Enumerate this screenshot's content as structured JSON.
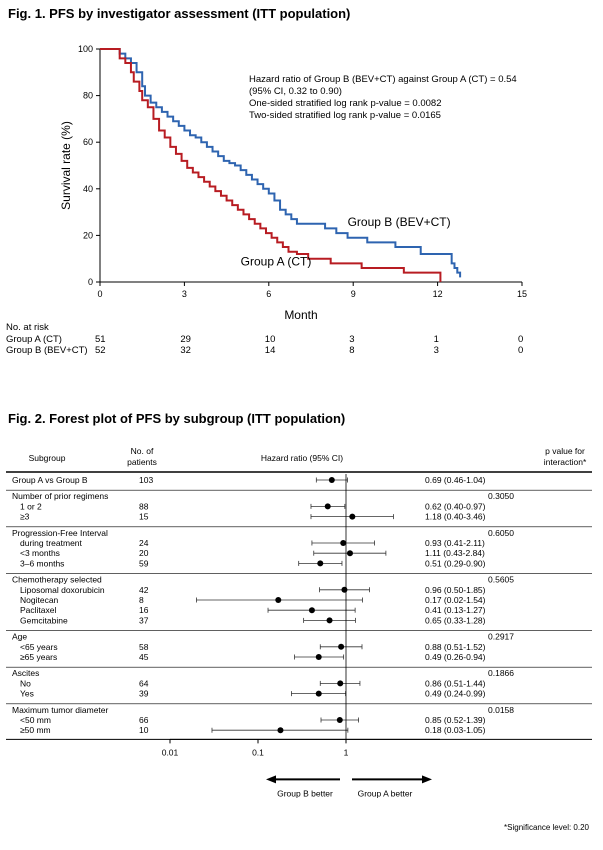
{
  "figure1": {
    "title": "Fig. 1. PFS by investigator assessment (ITT population)",
    "chart_data": {
      "type": "line",
      "title": "Fig. 1. PFS by investigator assessment (ITT population)",
      "xlabel": "Month",
      "ylabel": "Survival rate   (%)",
      "xlim": [
        0,
        15
      ],
      "ylim": [
        0,
        100
      ],
      "xticks": [
        0,
        3,
        6,
        9,
        12,
        15
      ],
      "yticks": [
        0,
        20,
        40,
        60,
        80,
        100
      ],
      "grid": false,
      "annotations": [
        "Hazard ratio of Group B (BEV+CT) against Group A (CT) = 0.54",
        "(95% CI, 0.32 to 0.90)",
        "One-sided stratified log rank p-value = 0.0082",
        "Two-sided stratified log rank p-value = 0.0165"
      ],
      "series": [
        {
          "name": "Group B (BEV+CT)",
          "color": "#2e64b0",
          "x": [
            0,
            0.5,
            0.7,
            0.9,
            1.1,
            1.3,
            1.5,
            1.6,
            1.8,
            2.0,
            2.2,
            2.4,
            2.6,
            2.8,
            3.0,
            3.2,
            3.4,
            3.6,
            3.8,
            4.0,
            4.2,
            4.4,
            4.6,
            4.8,
            5.0,
            5.2,
            5.4,
            5.6,
            5.8,
            6.0,
            6.2,
            6.4,
            6.6,
            6.8,
            7.0,
            7.5,
            8.0,
            8.4,
            8.8,
            9.2,
            9.5,
            10.0,
            10.5,
            11.0,
            11.4,
            11.8,
            12.2,
            12.5,
            12.6,
            12.7,
            12.8
          ],
          "y": [
            100,
            100,
            98,
            96,
            94,
            90,
            84,
            80,
            77,
            75,
            73,
            71,
            69,
            67,
            65,
            63,
            62,
            60,
            58,
            56,
            54,
            52,
            51,
            50,
            48,
            46,
            44,
            42,
            40,
            38,
            35,
            31,
            29,
            27,
            25,
            25,
            23,
            21,
            19,
            19,
            17,
            17,
            15,
            15,
            12,
            12,
            12,
            8,
            6,
            4,
            2
          ]
        },
        {
          "name": "Group A (CT)",
          "color": "#b81c22",
          "x": [
            0,
            0.5,
            0.7,
            0.9,
            1.1,
            1.2,
            1.4,
            1.5,
            1.7,
            1.9,
            2.1,
            2.3,
            2.5,
            2.7,
            2.9,
            3.1,
            3.3,
            3.5,
            3.7,
            3.9,
            4.1,
            4.3,
            4.5,
            4.7,
            4.9,
            5.1,
            5.3,
            5.5,
            5.7,
            5.9,
            6.1,
            6.3,
            6.5,
            6.7,
            7.0,
            7.4,
            7.8,
            8.2,
            8.7,
            9.3,
            9.8,
            10.3,
            10.8,
            11.4,
            12.0,
            12.1
          ],
          "y": [
            100,
            100,
            96,
            94,
            90,
            86,
            82,
            78,
            75,
            70,
            65,
            62,
            58,
            55,
            52,
            49,
            47,
            45,
            43,
            41,
            39,
            37,
            35,
            33,
            31,
            29,
            27,
            25,
            23,
            21,
            19,
            17,
            15,
            13,
            12,
            10,
            10,
            8,
            8,
            6,
            6,
            6,
            4,
            4,
            4,
            0
          ]
        }
      ],
      "series_labels": [
        {
          "text": "Group B (BEV+CT)",
          "x": 8.8,
          "y": 24
        },
        {
          "text": "Group A (CT)",
          "x": 5.0,
          "y": 7
        }
      ]
    },
    "at_risk": {
      "header": "No. at risk",
      "rows": [
        {
          "label": "Group A (CT)",
          "values": [
            "51",
            "29",
            "10",
            "3",
            "1",
            "0"
          ]
        },
        {
          "label": "Group B (BEV+CT)",
          "values": [
            "52",
            "32",
            "14",
            "8",
            "3",
            "0"
          ]
        }
      ]
    }
  },
  "figure2": {
    "title": "Fig. 2. Forest plot of PFS by subgroup (ITT population)",
    "chart_data": {
      "type": "scatter",
      "title": "Fig. 2. Forest plot of PFS by subgroup (ITT population)",
      "scale": "log",
      "xlim": [
        0.01,
        3
      ],
      "xticks": [
        0.01,
        0.1,
        1
      ],
      "xtick_labels": [
        "0.01",
        "0.1",
        "1"
      ],
      "reference_line": 1,
      "headers": {
        "subgroup": "Subgroup",
        "n": "No. of patients",
        "hr": "Hazard ratio (95% CI)",
        "p": "p value for interaction*"
      },
      "rows": [
        {
          "label": "Group A vs Group B",
          "indent": false,
          "n": "103",
          "hr": 0.69,
          "lo": 0.46,
          "hi": 1.04,
          "ci_text": "0.69 (0.46-1.04)",
          "p": ""
        },
        {
          "label": "Number of prior regimens",
          "indent": false,
          "n": "",
          "hr": null,
          "ci_text": "",
          "p": "0.3050"
        },
        {
          "label": "1 or 2",
          "indent": true,
          "n": "88",
          "hr": 0.62,
          "lo": 0.4,
          "hi": 0.97,
          "ci_text": "0.62 (0.40-0.97)",
          "p": ""
        },
        {
          "label": "≥3",
          "indent": true,
          "n": "15",
          "hr": 1.18,
          "lo": 0.4,
          "hi": 3.46,
          "ci_text": "1.18 (0.40-3.46)",
          "p": ""
        },
        {
          "label": "Progression-Free Interval",
          "indent": false,
          "n": "",
          "hr": null,
          "ci_text": "",
          "p": "0.6050"
        },
        {
          "label": "during treatment",
          "indent": true,
          "n": "24",
          "hr": 0.93,
          "lo": 0.41,
          "hi": 2.11,
          "ci_text": "0.93 (0.41-2.11)",
          "p": ""
        },
        {
          "label": "<3 months",
          "indent": true,
          "n": "20",
          "hr": 1.11,
          "lo": 0.43,
          "hi": 2.84,
          "ci_text": "1.11 (0.43-2.84)",
          "p": ""
        },
        {
          "label": "3–6 months",
          "indent": true,
          "n": "59",
          "hr": 0.51,
          "lo": 0.29,
          "hi": 0.9,
          "ci_text": "0.51 (0.29-0.90)",
          "p": ""
        },
        {
          "label": "Chemotherapy selected",
          "indent": false,
          "n": "",
          "hr": null,
          "ci_text": "",
          "p": "0.5605"
        },
        {
          "label": "Liposomal doxorubicin",
          "indent": true,
          "n": "42",
          "hr": 0.96,
          "lo": 0.5,
          "hi": 1.85,
          "ci_text": "0.96 (0.50-1.85)",
          "p": ""
        },
        {
          "label": "Nogitecan",
          "indent": true,
          "n": "8",
          "hr": 0.17,
          "lo": 0.02,
          "hi": 1.54,
          "ci_text": "0.17 (0.02-1.54)",
          "p": ""
        },
        {
          "label": "Paclitaxel",
          "indent": true,
          "n": "16",
          "hr": 0.41,
          "lo": 0.13,
          "hi": 1.27,
          "ci_text": "0.41 (0.13-1.27)",
          "p": ""
        },
        {
          "label": "Gemcitabine",
          "indent": true,
          "n": "37",
          "hr": 0.65,
          "lo": 0.33,
          "hi": 1.28,
          "ci_text": "0.65 (0.33-1.28)",
          "p": ""
        },
        {
          "label": "Age",
          "indent": false,
          "n": "",
          "hr": null,
          "ci_text": "",
          "p": "0.2917"
        },
        {
          "label": "<65 years",
          "indent": true,
          "n": "58",
          "hr": 0.88,
          "lo": 0.51,
          "hi": 1.52,
          "ci_text": "0.88 (0.51-1.52)",
          "p": ""
        },
        {
          "label": "≥65 years",
          "indent": true,
          "n": "45",
          "hr": 0.49,
          "lo": 0.26,
          "hi": 0.94,
          "ci_text": "0.49 (0.26-0.94)",
          "p": ""
        },
        {
          "label": "Ascites",
          "indent": false,
          "n": "",
          "hr": null,
          "ci_text": "",
          "p": "0.1866"
        },
        {
          "label": "No",
          "indent": true,
          "n": "64",
          "hr": 0.86,
          "lo": 0.51,
          "hi": 1.44,
          "ci_text": "0.86 (0.51-1.44)",
          "p": ""
        },
        {
          "label": "Yes",
          "indent": true,
          "n": "39",
          "hr": 0.49,
          "lo": 0.24,
          "hi": 0.99,
          "ci_text": "0.49 (0.24-0.99)",
          "p": ""
        },
        {
          "label": "Maximum tumor diameter",
          "indent": false,
          "n": "",
          "hr": null,
          "ci_text": "",
          "p": "0.0158"
        },
        {
          "label": "<50 mm",
          "indent": true,
          "n": "66",
          "hr": 0.85,
          "lo": 0.52,
          "hi": 1.39,
          "ci_text": "0.85 (0.52-1.39)",
          "p": ""
        },
        {
          "label": "≥50 mm",
          "indent": true,
          "n": "10",
          "hr": 0.18,
          "lo": 0.03,
          "hi": 1.05,
          "ci_text": "0.18 (0.03-1.05)",
          "p": ""
        }
      ],
      "favor_left": "Group B better",
      "favor_right": "Group A better"
    },
    "footnote": "*Significance level: 0.20"
  }
}
